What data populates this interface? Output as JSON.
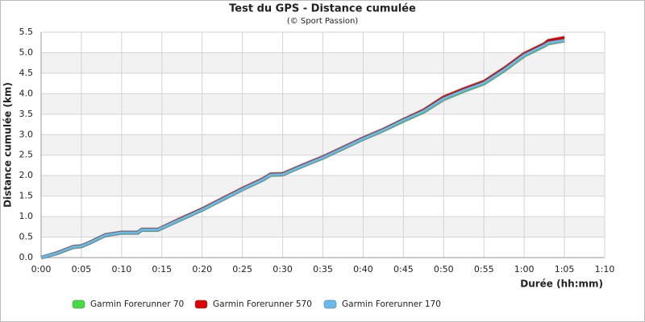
{
  "chart_data": {
    "type": "line",
    "title": "Test du GPS - Distance cumulée",
    "subtitle": "(© Sport Passion)",
    "y_label": "Distance cumulée (km)",
    "x_label": "Durée (hh:mm)",
    "x": [
      0,
      2,
      4,
      5,
      6,
      8,
      10,
      12,
      12.5,
      14.5,
      17.5,
      20,
      22.5,
      25,
      27.5,
      28.5,
      30,
      32.5,
      35,
      37.5,
      40,
      42.5,
      45,
      47.5,
      50,
      52.5,
      55,
      57.5,
      60,
      62.5,
      63,
      65
    ],
    "series": [
      {
        "name": "Garmin Forerunner 70",
        "color": "#44dd44",
        "values": [
          0,
          0.1,
          0.25,
          0.27,
          0.35,
          0.54,
          0.6,
          0.6,
          0.67,
          0.67,
          0.94,
          1.16,
          1.41,
          1.66,
          1.89,
          2.01,
          2.02,
          2.23,
          2.43,
          2.66,
          2.89,
          3.1,
          3.33,
          3.55,
          3.86,
          4.06,
          4.24,
          4.56,
          4.92,
          5.16,
          5.22,
          5.29
        ]
      },
      {
        "name": "Garmin Forerunner 570",
        "color": "#dd0000",
        "values": [
          0,
          0.12,
          0.27,
          0.29,
          0.37,
          0.56,
          0.62,
          0.62,
          0.69,
          0.69,
          0.97,
          1.19,
          1.44,
          1.69,
          1.92,
          2.04,
          2.05,
          2.26,
          2.46,
          2.69,
          2.92,
          3.13,
          3.37,
          3.6,
          3.92,
          4.12,
          4.3,
          4.62,
          4.98,
          5.22,
          5.3,
          5.37
        ]
      },
      {
        "name": "Garmin Forerunner 170",
        "color": "#66bbee",
        "values": [
          0,
          0.11,
          0.26,
          0.28,
          0.36,
          0.55,
          0.61,
          0.61,
          0.68,
          0.68,
          0.95,
          1.17,
          1.42,
          1.67,
          1.9,
          2.02,
          2.03,
          2.24,
          2.44,
          2.67,
          2.9,
          3.11,
          3.35,
          3.57,
          3.88,
          4.08,
          4.26,
          4.58,
          4.94,
          5.18,
          5.24,
          5.3
        ]
      }
    ],
    "xlim": [
      0,
      70
    ],
    "xticks": [
      {
        "value": 0,
        "label": "0:00"
      },
      {
        "value": 5,
        "label": "0:05"
      },
      {
        "value": 10,
        "label": "0:10"
      },
      {
        "value": 15,
        "label": "0:15"
      },
      {
        "value": 20,
        "label": "0:20"
      },
      {
        "value": 25,
        "label": "0:25"
      },
      {
        "value": 30,
        "label": "0:30"
      },
      {
        "value": 35,
        "label": "0:35"
      },
      {
        "value": 40,
        "label": "0:40"
      },
      {
        "value": 45,
        "label": "0:45"
      },
      {
        "value": 50,
        "label": "0:50"
      },
      {
        "value": 55,
        "label": "0:55"
      },
      {
        "value": 60,
        "label": "1:00"
      },
      {
        "value": 65,
        "label": "1:05"
      },
      {
        "value": 70,
        "label": "1:10"
      }
    ],
    "ylim": [
      0,
      5.5
    ],
    "yticks": [
      {
        "value": 0,
        "label": "0.0"
      },
      0.5,
      {
        "value": 1,
        "label": "1.0"
      },
      1.5,
      {
        "value": 2,
        "label": "2.0"
      },
      2.5,
      {
        "value": 3,
        "label": "3.0"
      },
      3.5,
      {
        "value": 4,
        "label": "4.0"
      },
      4.5,
      {
        "value": 5,
        "label": "5.0"
      },
      5.5
    ],
    "grid": true,
    "legend": "bottom"
  }
}
